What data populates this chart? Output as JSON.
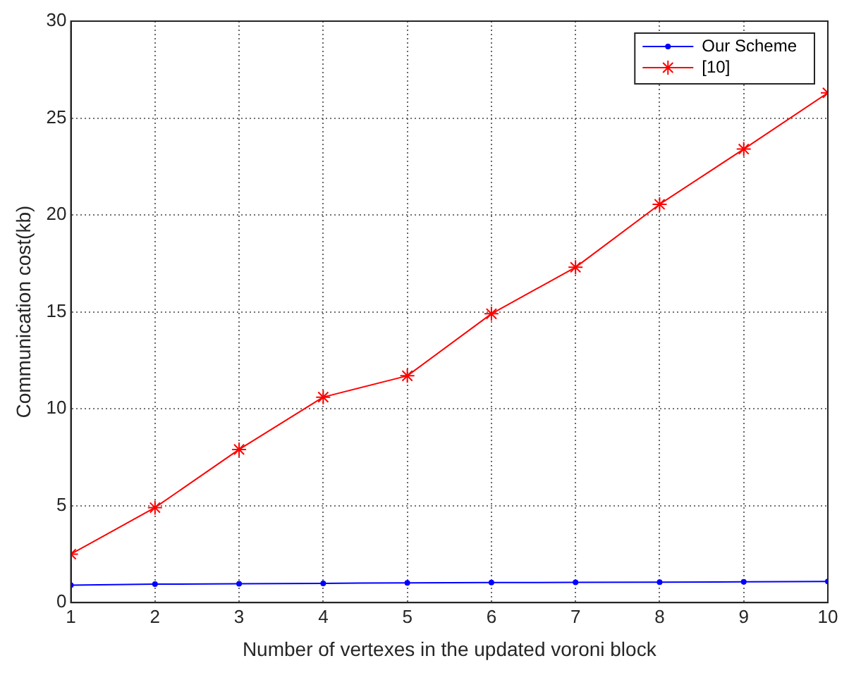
{
  "chart_data": {
    "type": "line",
    "xlabel": "Number of vertexes in the updated voroni block",
    "ylabel": "Communication cost(kb)",
    "x": [
      1,
      2,
      3,
      4,
      5,
      6,
      7,
      8,
      9,
      10
    ],
    "series": [
      {
        "name": "Our Scheme",
        "color": "#0000ff",
        "marker": "circle",
        "values": [
          0.9,
          0.95,
          0.97,
          0.99,
          1.02,
          1.03,
          1.04,
          1.05,
          1.07,
          1.09
        ]
      },
      {
        "name": "[10]",
        "color": "#ff0000",
        "marker": "cross",
        "values": [
          2.5,
          4.9,
          7.9,
          10.6,
          11.7,
          14.9,
          17.3,
          20.55,
          23.4,
          26.3
        ]
      }
    ],
    "xlim": [
      1,
      10
    ],
    "xticks": [
      1,
      2,
      3,
      4,
      5,
      6,
      7,
      8,
      9,
      10
    ],
    "ylim": [
      0,
      30
    ],
    "yticks": [
      0,
      5,
      10,
      15,
      20,
      25,
      30
    ],
    "grid": true,
    "legend": "top right",
    "line_style": "solid"
  }
}
